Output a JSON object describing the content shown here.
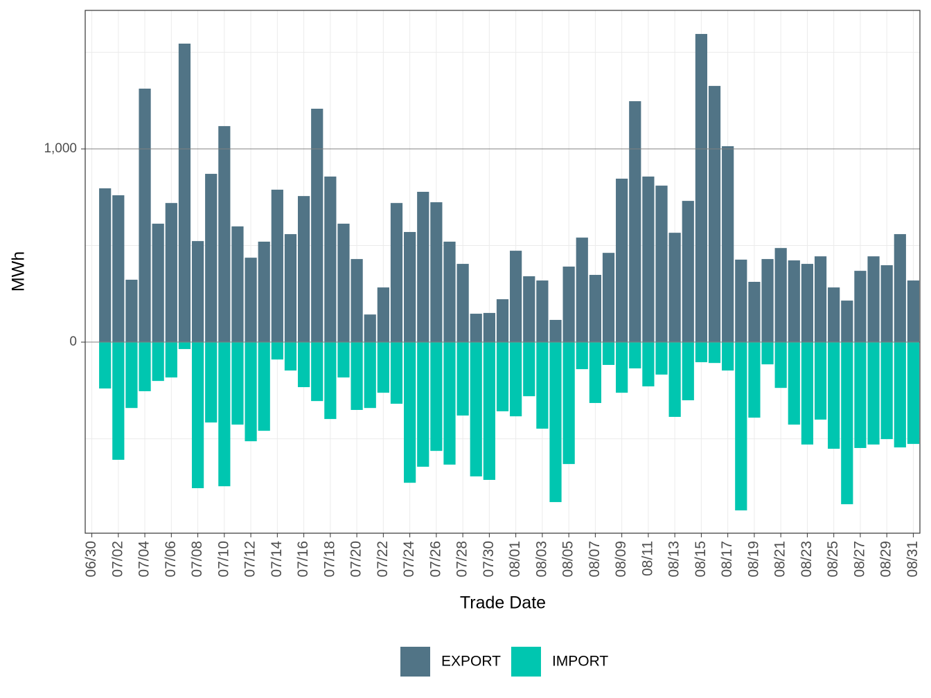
{
  "chart_data": {
    "type": "bar",
    "stacked": true,
    "xlabel": "Trade Date",
    "ylabel": "MWh",
    "categories": [
      "06/30",
      null,
      "07/02",
      null,
      "07/04",
      null,
      "07/06",
      null,
      "07/08",
      null,
      "07/10",
      null,
      "07/12",
      null,
      "07/14",
      null,
      "07/16",
      null,
      "07/18",
      null,
      "07/20",
      null,
      "07/22",
      null,
      "07/24",
      null,
      "07/26",
      null,
      "07/28",
      null,
      "07/30",
      null,
      "08/01",
      null,
      "08/03",
      null,
      "08/05",
      null,
      "08/07",
      null,
      "08/09",
      null,
      "08/11",
      null,
      "08/13",
      null,
      "08/15",
      null,
      "08/17",
      null,
      "08/19",
      null,
      "08/21",
      null,
      "08/23",
      null,
      "08/25",
      null,
      "08/27",
      null,
      "08/29",
      null,
      "08/31"
    ],
    "series": [
      {
        "name": "EXPORT",
        "color": "#517486",
        "values": [
          null,
          796,
          760,
          323,
          1312,
          613,
          720,
          1545,
          523,
          871,
          1118,
          599,
          437,
          520,
          789,
          559,
          756,
          1208,
          857,
          613,
          430,
          143,
          283,
          720,
          570,
          778,
          724,
          520,
          405,
          147,
          151,
          222,
          473,
          341,
          319,
          115,
          391,
          541,
          348,
          462,
          846,
          1247,
          857,
          810,
          566,
          731,
          1595,
          1326,
          1014,
          427,
          312,
          430,
          487,
          423,
          405,
          444,
          283,
          215,
          369,
          444,
          398,
          559,
          319
        ]
      },
      {
        "name": "IMPORT",
        "color": "#00c6b0",
        "values": [
          null,
          -240,
          -609,
          -341,
          -254,
          -201,
          -183,
          -36,
          -756,
          -416,
          -746,
          -427,
          -513,
          -459,
          -90,
          -147,
          -233,
          -305,
          -398,
          -183,
          -351,
          -341,
          -262,
          -319,
          -728,
          -645,
          -563,
          -634,
          -380,
          -695,
          -713,
          -358,
          -384,
          -280,
          -448,
          -828,
          -631,
          -140,
          -315,
          -118,
          -262,
          -136,
          -229,
          -168,
          -387,
          -301,
          -104,
          -108,
          -147,
          -871,
          -391,
          -115,
          -237,
          -427,
          -530,
          -401,
          -552,
          -839,
          -548,
          -530,
          -502,
          -545,
          -527
        ]
      }
    ],
    "ylim": [
      -989,
      1717
    ],
    "yticks": [
      0,
      {
        "value": 1000,
        "label": "1,000"
      }
    ],
    "minor_yticks": [
      -500,
      500,
      1500
    ],
    "grid": true,
    "legend": "bottom"
  }
}
